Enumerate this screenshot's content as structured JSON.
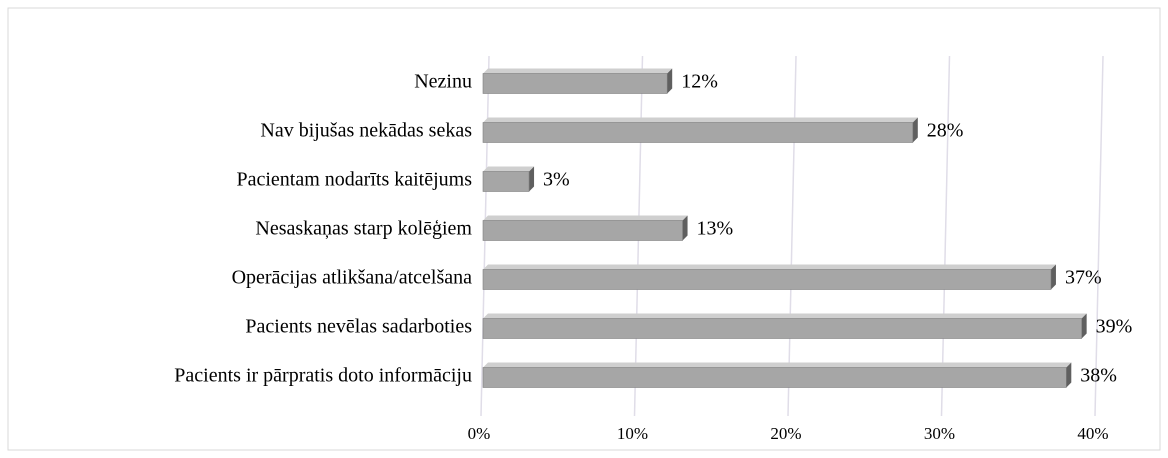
{
  "chart_data": {
    "type": "bar",
    "orientation": "horizontal",
    "categories": [
      "Nezinu",
      "Nav bijušas nekādas sekas",
      "Pacientam nodarīts kaitējums",
      "Nesaskaņas starp kolēģiem",
      "Operācijas atlikšana/atcelšana",
      "Pacients nevēlas sadarboties",
      "Pacients ir pārpratis doto informāciju"
    ],
    "values": [
      12,
      28,
      3,
      13,
      37,
      39,
      38
    ],
    "value_labels": [
      "12%",
      "28%",
      "3%",
      "13%",
      "37%",
      "39%",
      "38%"
    ],
    "color": "#a6a6a6",
    "xlim": [
      0,
      40
    ],
    "xticks": [
      {
        "value": 0,
        "label": "0%"
      },
      {
        "value": 10,
        "label": "10%"
      },
      {
        "value": 20,
        "label": "20%"
      },
      {
        "value": 30,
        "label": "30%"
      },
      {
        "value": 40,
        "label": "40%"
      }
    ],
    "grid": true
  }
}
